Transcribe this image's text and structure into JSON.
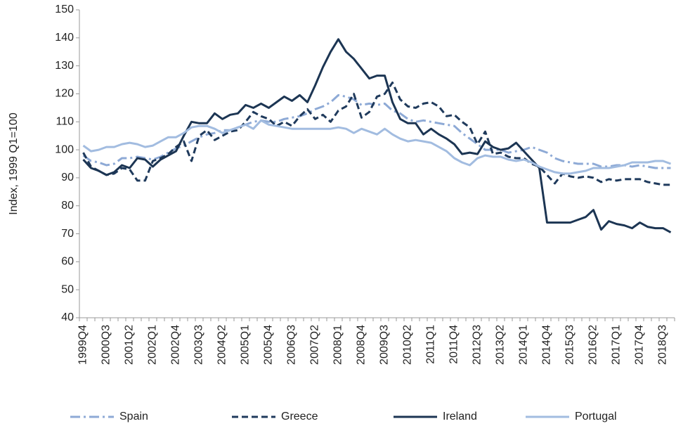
{
  "chart_data": {
    "type": "line",
    "y_label": "Index, 1999 Q1=100",
    "categories": [
      "1999Q4",
      null,
      null,
      "2000Q3",
      null,
      null,
      "2001Q2",
      null,
      null,
      "2002Q1",
      null,
      null,
      "2002Q4",
      null,
      null,
      "2003Q3",
      null,
      null,
      "2004Q2",
      null,
      null,
      "2005Q1",
      null,
      null,
      "2005Q4",
      null,
      null,
      "2006Q3",
      null,
      null,
      "2007Q2",
      null,
      null,
      "2008Q1",
      null,
      null,
      "2008Q4",
      null,
      null,
      "2009Q3",
      null,
      null,
      "2010Q2",
      null,
      null,
      "2011Q1",
      null,
      null,
      "2011Q4",
      null,
      null,
      "2012Q3",
      null,
      null,
      "2013Q2",
      null,
      null,
      "2014Q1",
      null,
      null,
      "2014Q4",
      null,
      null,
      "2015Q3",
      null,
      null,
      "2016Q2",
      null,
      null,
      "2017Q1",
      null,
      null,
      "2017Q4",
      null,
      null,
      "2018Q3",
      null
    ],
    "ylim": [
      40,
      150
    ],
    "yticks": [
      40,
      50,
      60,
      70,
      80,
      90,
      100,
      110,
      120,
      130,
      140,
      150
    ],
    "grid": false,
    "legend": "bottom",
    "series": [
      {
        "name": "Spain",
        "color": "#8eaad6",
        "style": "dash-dot",
        "values": [
          98,
          96,
          95.5,
          94.5,
          95,
          97,
          97,
          97.5,
          97,
          96.5,
          97.5,
          99,
          100.5,
          101.5,
          103,
          104.5,
          105.5,
          106,
          107,
          107,
          108,
          109,
          110,
          110.5,
          110,
          110,
          111,
          111.5,
          112,
          113,
          114.5,
          115.5,
          117,
          119.5,
          119,
          118,
          116,
          116.5,
          116,
          116.5,
          114,
          113,
          111,
          110,
          110.5,
          110,
          109.5,
          109,
          108.5,
          106,
          104,
          102,
          100,
          100,
          100,
          99,
          99.5,
          100,
          101,
          100,
          99,
          97,
          96,
          95.5,
          95,
          95,
          95,
          94,
          94,
          94.5,
          94.5,
          94,
          94.5,
          94,
          93.5,
          93.5,
          93.5
        ]
      },
      {
        "name": "Greece",
        "color": "#1f3a5c",
        "style": "dash",
        "values": [
          99,
          94,
          92.5,
          91,
          91.5,
          93.5,
          93,
          89,
          89,
          96,
          97,
          98.5,
          101,
          103,
          96,
          105,
          107,
          103.5,
          105,
          106.5,
          107,
          110,
          113.5,
          112,
          111,
          108.5,
          110,
          108.5,
          112,
          114.5,
          111,
          112.5,
          110,
          114,
          115.5,
          120,
          111.5,
          113.5,
          119,
          120,
          124,
          118,
          115.5,
          115,
          116.5,
          117,
          115.5,
          112,
          112.5,
          110,
          108,
          102,
          106.5,
          98.5,
          99,
          97.5,
          97,
          97,
          95,
          94,
          91,
          88,
          91.5,
          90.5,
          90,
          90.5,
          90,
          88.5,
          89.5,
          89,
          89.5,
          89.5,
          89.5,
          88.5,
          88,
          87.5,
          87.5
        ]
      },
      {
        "name": "Ireland",
        "color": "#1c3553",
        "style": "solid",
        "values": [
          96.5,
          93.5,
          92.5,
          91,
          92,
          94.5,
          93.5,
          97,
          96.5,
          94,
          96.5,
          98,
          99.5,
          105,
          110,
          109.5,
          109.5,
          113,
          111,
          112.5,
          113,
          116,
          115,
          116.5,
          115,
          117,
          119,
          117.5,
          119.5,
          117,
          123,
          129.5,
          135,
          139.5,
          135,
          132.5,
          129,
          125.5,
          126.5,
          126.5,
          117,
          111,
          109.5,
          109.5,
          105.5,
          107.5,
          105.5,
          104,
          102,
          98.5,
          99,
          98.5,
          103,
          101,
          100,
          100.5,
          102.5,
          99.5,
          96.5,
          93.5,
          74,
          74,
          74,
          74,
          75,
          76,
          78.5,
          71.5,
          74.5,
          73.5,
          73,
          72,
          74,
          72.5,
          72,
          72,
          70.5
        ]
      },
      {
        "name": "Portugal",
        "color": "#a2bce0",
        "style": "solid",
        "values": [
          101.5,
          99.5,
          100,
          101,
          101,
          102,
          102.5,
          102,
          101,
          101.5,
          103,
          104.5,
          104.5,
          106,
          108,
          108.5,
          108.5,
          107.5,
          106,
          107,
          108,
          109,
          107.5,
          110.5,
          109,
          108.5,
          108,
          107.5,
          107.5,
          107.5,
          107.5,
          107.5,
          107.5,
          108,
          107.5,
          106,
          107.5,
          106.5,
          105.5,
          107.5,
          105.5,
          104,
          103,
          103.5,
          103,
          102.5,
          101,
          99.5,
          97,
          95.5,
          94.5,
          97,
          98,
          97.5,
          97.5,
          96.5,
          96,
          96.5,
          95.5,
          94,
          93,
          92,
          91.5,
          91.5,
          92,
          92.5,
          93.5,
          93.5,
          93.5,
          94,
          94.5,
          95.5,
          95.5,
          95.5,
          96,
          96,
          95
        ]
      }
    ]
  }
}
